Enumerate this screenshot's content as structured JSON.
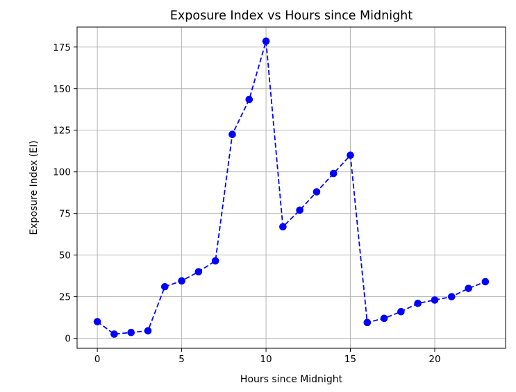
{
  "chart_data": {
    "type": "line",
    "title": "Exposure Index vs Hours since Midnight",
    "xlabel": "Hours since Midnight",
    "ylabel": "Exposure Index (EI)",
    "xlim": [
      -1.2,
      24.2
    ],
    "ylim": [
      -6,
      187
    ],
    "xticks": [
      0,
      5,
      10,
      15,
      20
    ],
    "yticks": [
      0,
      25,
      50,
      75,
      100,
      125,
      150,
      175
    ],
    "grid": true,
    "series": [
      {
        "color": "#0000ff",
        "line_style": "dashed",
        "marker": "circle",
        "x": [
          0,
          1,
          2,
          3,
          4,
          5,
          6,
          7,
          8,
          9,
          10,
          11,
          12,
          13,
          14,
          15,
          16,
          17,
          18,
          19,
          20,
          21,
          22,
          23
        ],
        "values": [
          10,
          2.5,
          3.5,
          4.5,
          31,
          34.5,
          40,
          46.5,
          122.5,
          143.5,
          178.5,
          67,
          77,
          88,
          99,
          110,
          9.5,
          12,
          16,
          21,
          23,
          25,
          30,
          34
        ]
      }
    ]
  }
}
